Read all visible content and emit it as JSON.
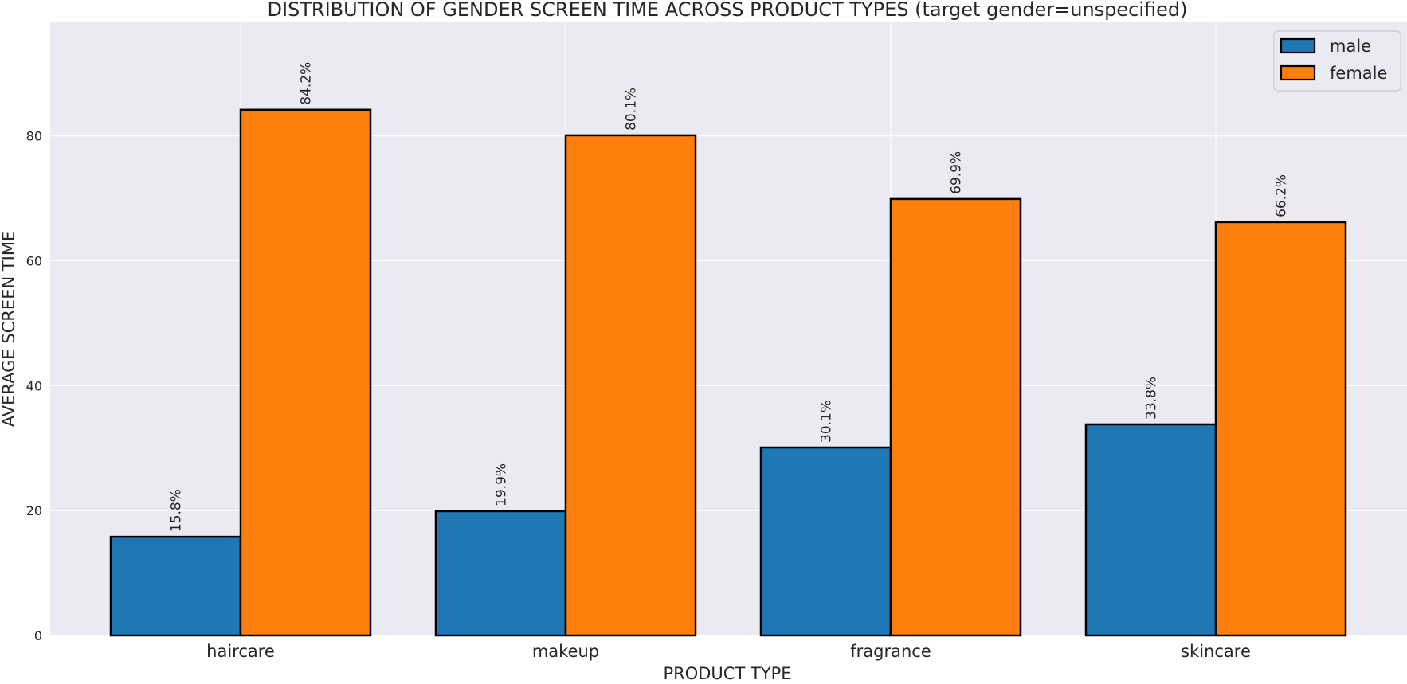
{
  "chart_data": {
    "type": "bar",
    "title": "DISTRIBUTION OF GENDER SCREEN TIME ACROSS PRODUCT TYPES (target gender=unspecified)",
    "xlabel": "PRODUCT TYPE",
    "ylabel": "AVERAGE SCREEN TIME",
    "categories": [
      "haircare",
      "makeup",
      "fragrance",
      "skincare"
    ],
    "series": [
      {
        "name": "male",
        "color": "#1f77b4",
        "values": [
          15.8,
          19.9,
          30.1,
          33.8
        ],
        "labels": [
          "15.8%",
          "19.9%",
          "30.1%",
          "33.8%"
        ]
      },
      {
        "name": "female",
        "color": "#ff7f0e",
        "values": [
          84.2,
          80.1,
          69.9,
          66.2
        ],
        "labels": [
          "84.2%",
          "80.1%",
          "69.9%",
          "66.2%"
        ]
      }
    ],
    "ylim": [
      0,
      98.2
    ],
    "yticks": [
      0,
      20,
      40,
      60,
      80
    ],
    "grid": true,
    "legend_position": "top-right",
    "background_color": "#eaeaf2",
    "grid_color": "#ffffff",
    "bar_edge_color": "#000000"
  }
}
